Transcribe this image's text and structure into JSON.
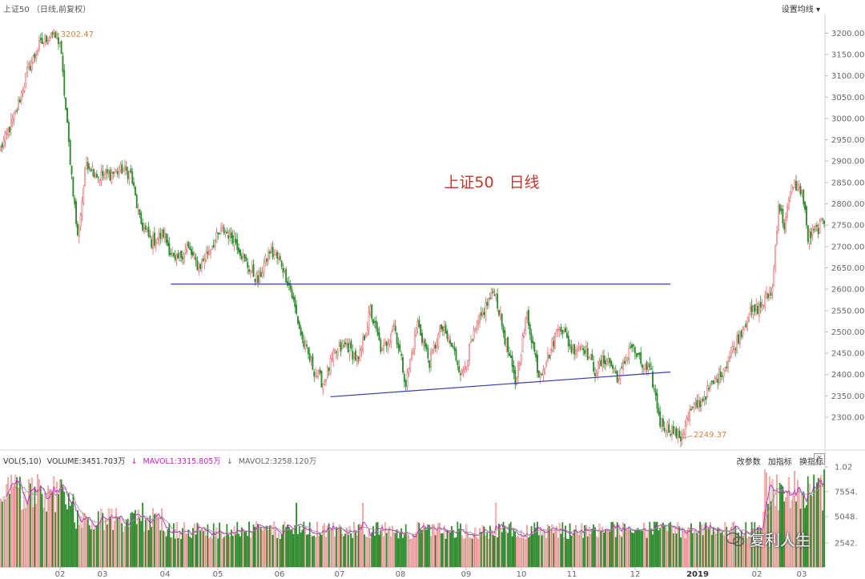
{
  "header": {
    "title": "上证50 （日线,前复权）",
    "settings_label": "设置均线",
    "settings_icon": "chevron-down-icon"
  },
  "volume_panel": {
    "vol_label": "VOL(5,10)",
    "volume_label": "VOLUME:3451.703万",
    "mavol1_label": "MAVOL1:3315.805万",
    "mavol2_label": "MAVOL2:3258.120万",
    "tools": [
      "改参数",
      "加指标",
      "换指标"
    ],
    "close_label": "×"
  },
  "watermark": "复利人生",
  "chart_data": {
    "type": "candlestick",
    "annotation_title": "上证50　日线",
    "price_axis_ticks": [
      2300,
      2350,
      2400,
      2450,
      2500,
      2550,
      2600,
      2650,
      2700,
      2750,
      2800,
      2850,
      2900,
      2950,
      3000,
      3050,
      3100,
      3150,
      3200
    ],
    "price_range": [
      2240,
      3225
    ],
    "high_label": "3202.47",
    "low_label": "2249.37",
    "volume_axis_ticks": [
      "2542.",
      "5048.",
      "7554.",
      "1.02"
    ],
    "month_labels": [
      "02",
      "03",
      "04",
      "05",
      "06",
      "07",
      "08",
      "09",
      "10",
      "11",
      "12",
      "2019",
      "02",
      "03"
    ],
    "colors": {
      "up": "#e06a6a",
      "down": "#2e8b2e",
      "trendline": "#3b3bb0",
      "mavol1": "#c020c0",
      "mavol2": "#999999",
      "annotation": "#c0392b",
      "axis": "#999999"
    },
    "anchors": [
      [
        0,
        2930
      ],
      [
        10,
        3010
      ],
      [
        18,
        3110
      ],
      [
        26,
        3170
      ],
      [
        34,
        3200
      ],
      [
        40,
        3180
      ],
      [
        46,
        2940
      ],
      [
        52,
        2720
      ],
      [
        58,
        2900
      ],
      [
        66,
        2865
      ],
      [
        74,
        2870
      ],
      [
        82,
        2880
      ],
      [
        88,
        2870
      ],
      [
        94,
        2760
      ],
      [
        102,
        2710
      ],
      [
        110,
        2730
      ],
      [
        118,
        2660
      ],
      [
        126,
        2700
      ],
      [
        134,
        2650
      ],
      [
        142,
        2700
      ],
      [
        150,
        2740
      ],
      [
        158,
        2720
      ],
      [
        166,
        2660
      ],
      [
        174,
        2620
      ],
      [
        182,
        2690
      ],
      [
        190,
        2660
      ],
      [
        196,
        2600
      ],
      [
        204,
        2480
      ],
      [
        212,
        2410
      ],
      [
        218,
        2380
      ],
      [
        226,
        2450
      ],
      [
        234,
        2470
      ],
      [
        242,
        2430
      ],
      [
        250,
        2550
      ],
      [
        258,
        2450
      ],
      [
        266,
        2520
      ],
      [
        274,
        2380
      ],
      [
        282,
        2520
      ],
      [
        290,
        2430
      ],
      [
        298,
        2510
      ],
      [
        306,
        2460
      ],
      [
        312,
        2400
      ],
      [
        320,
        2490
      ],
      [
        328,
        2560
      ],
      [
        334,
        2600
      ],
      [
        340,
        2500
      ],
      [
        348,
        2380
      ],
      [
        356,
        2540
      ],
      [
        364,
        2400
      ],
      [
        370,
        2440
      ],
      [
        378,
        2520
      ],
      [
        386,
        2460
      ],
      [
        394,
        2470
      ],
      [
        402,
        2410
      ],
      [
        410,
        2440
      ],
      [
        418,
        2390
      ],
      [
        426,
        2470
      ],
      [
        434,
        2420
      ],
      [
        440,
        2400
      ],
      [
        446,
        2290
      ],
      [
        454,
        2270
      ],
      [
        460,
        2253
      ],
      [
        466,
        2310
      ],
      [
        474,
        2340
      ],
      [
        482,
        2380
      ],
      [
        490,
        2420
      ],
      [
        498,
        2480
      ],
      [
        506,
        2540
      ],
      [
        514,
        2560
      ],
      [
        522,
        2600
      ],
      [
        526,
        2800
      ],
      [
        530,
        2750
      ],
      [
        536,
        2850
      ],
      [
        542,
        2830
      ],
      [
        546,
        2720
      ],
      [
        552,
        2740
      ],
      [
        557,
        2760
      ]
    ],
    "trendlines": [
      {
        "name": "resistance",
        "start": [
          115,
          2612
        ],
        "end": [
          453,
          2612
        ]
      },
      {
        "name": "support",
        "start": [
          223,
          2348
        ],
        "end": [
          453,
          2406
        ]
      }
    ]
  }
}
